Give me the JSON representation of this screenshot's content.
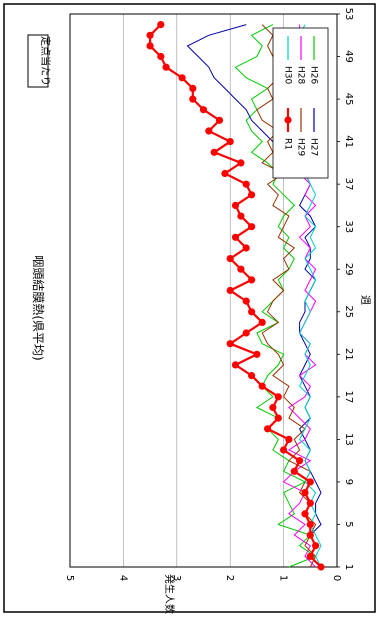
{
  "chart_data": {
    "type": "line",
    "title": "咽頭結膜熱(県平均)",
    "corner_label": "定点当たり",
    "xlabel": "週",
    "ylabel": "発生人数",
    "xlim": [
      1,
      53
    ],
    "ylim": [
      0,
      5
    ],
    "x_ticks": [
      "1",
      "5",
      "9",
      "13",
      "17",
      "21",
      "25",
      "29",
      "33",
      "37",
      "41",
      "45",
      "49",
      "53"
    ],
    "y_ticks": [
      "0",
      "1",
      "2",
      "3",
      "4",
      "5"
    ],
    "grid": true,
    "legend_position": "top-right",
    "x": [
      1,
      2,
      3,
      4,
      5,
      6,
      7,
      8,
      9,
      10,
      11,
      12,
      13,
      14,
      15,
      16,
      17,
      18,
      19,
      20,
      21,
      22,
      23,
      24,
      25,
      26,
      27,
      28,
      29,
      30,
      31,
      32,
      33,
      34,
      35,
      36,
      37,
      38,
      39,
      40,
      41,
      42,
      43,
      44,
      45,
      46,
      47,
      48,
      49,
      50,
      51,
      52
    ],
    "series": [
      {
        "name": "H26",
        "color": "#00cc00",
        "marker": false,
        "values": [
          0.9,
          0.4,
          0.7,
          0.5,
          1.1,
          0.8,
          0.9,
          1.0,
          0.6,
          1.0,
          0.9,
          1.2,
          1.1,
          1.3,
          1.1,
          1.5,
          1.2,
          1.4,
          1.3,
          1.1,
          1.0,
          1.4,
          1.5,
          1.1,
          1.4,
          1.2,
          1.0,
          1.1,
          0.9,
          0.8,
          1.0,
          0.9,
          1.1,
          1.0,
          0.8,
          1.0,
          1.2,
          1.1,
          1.3,
          1.6,
          1.4,
          1.6,
          1.7,
          1.5,
          1.6,
          1.3,
          1.7,
          1.9,
          1.5,
          1.4,
          1.6,
          1.2
        ]
      },
      {
        "name": "H27",
        "color": "#0000aa",
        "marker": false,
        "values": [
          0.3,
          0.5,
          0.4,
          0.5,
          0.3,
          0.4,
          0.4,
          0.3,
          0.4,
          0.5,
          0.6,
          0.5,
          0.6,
          0.7,
          0.5,
          0.6,
          0.5,
          0.6,
          0.7,
          0.6,
          0.5,
          0.6,
          0.7,
          0.7,
          0.6,
          0.6,
          0.5,
          0.4,
          0.6,
          0.5,
          0.5,
          0.6,
          0.4,
          0.5,
          0.7,
          0.6,
          0.5,
          0.6,
          0.8,
          1.0,
          1.2,
          1.4,
          1.6,
          1.7,
          1.9,
          2.1,
          2.3,
          2.4,
          2.6,
          2.8,
          2.4,
          1.7
        ]
      },
      {
        "name": "H28",
        "color": "#ff00ff",
        "marker": false,
        "values": [
          0.4,
          0.6,
          0.5,
          0.8,
          0.6,
          0.9,
          0.7,
          0.6,
          1.0,
          0.8,
          0.5,
          0.9,
          0.6,
          0.5,
          0.7,
          0.9,
          0.6,
          0.5,
          0.7,
          0.4,
          0.6,
          0.5,
          0.7,
          0.6,
          0.5,
          0.4,
          0.6,
          0.5,
          0.4,
          0.6,
          0.5,
          0.7,
          0.5,
          0.6,
          0.4,
          0.6,
          0.5,
          0.7,
          0.6,
          0.8,
          0.6,
          0.7,
          0.8,
          0.6,
          0.7,
          0.8,
          0.7,
          0.9,
          0.8,
          0.6,
          0.7,
          0.7
        ]
      },
      {
        "name": "H29",
        "color": "#993300",
        "marker": false,
        "values": [
          0.5,
          0.4,
          0.6,
          0.5,
          0.4,
          0.6,
          0.5,
          0.7,
          0.6,
          0.5,
          0.9,
          0.7,
          0.8,
          0.6,
          0.9,
          0.8,
          1.0,
          0.9,
          1.2,
          1.0,
          1.1,
          1.3,
          1.4,
          1.1,
          1.3,
          1.2,
          1.0,
          1.2,
          0.9,
          1.0,
          0.8,
          1.1,
          1.0,
          0.9,
          1.2,
          1.1,
          1.3,
          1.0,
          1.4,
          1.2,
          1.3,
          1.1,
          1.4,
          1.5,
          1.2,
          1.3,
          1.1,
          1.0,
          1.2,
          1.3,
          1.2,
          1.4
        ]
      },
      {
        "name": "H30",
        "color": "#00cccc",
        "marker": false,
        "values": [
          0.3,
          0.4,
          0.3,
          0.4,
          0.5,
          0.4,
          0.5,
          0.4,
          0.6,
          0.5,
          0.6,
          0.5,
          0.7,
          0.6,
          0.5,
          0.6,
          0.5,
          0.7,
          0.6,
          0.5,
          0.6,
          0.5,
          0.7,
          0.6,
          0.5,
          0.6,
          0.5,
          0.4,
          0.5,
          0.6,
          0.4,
          0.5,
          0.4,
          0.6,
          0.5,
          0.4,
          0.5,
          0.6,
          0.5,
          0.4,
          0.5,
          0.6,
          0.5,
          0.6,
          0.7,
          0.5,
          0.6,
          0.5,
          0.6,
          0.5,
          0.7,
          0.6
        ]
      },
      {
        "name": "R1",
        "color": "#ff0000",
        "marker": true,
        "values": [
          0.3,
          0.5,
          0.4,
          0.5,
          0.5,
          0.6,
          0.5,
          0.6,
          0.5,
          0.8,
          0.7,
          1.0,
          0.9,
          1.3,
          1.1,
          1.2,
          1.1,
          1.4,
          1.6,
          1.9,
          1.5,
          2.0,
          1.7,
          1.4,
          1.6,
          1.7,
          2.0,
          1.6,
          1.8,
          2.0,
          1.7,
          1.9,
          1.6,
          1.8,
          1.9,
          1.6,
          1.7,
          2.1,
          1.8,
          2.3,
          2.0,
          2.4,
          2.2,
          2.5,
          2.7,
          2.7,
          2.9,
          3.2,
          3.3,
          3.5,
          3.5,
          3.3
        ]
      }
    ]
  }
}
